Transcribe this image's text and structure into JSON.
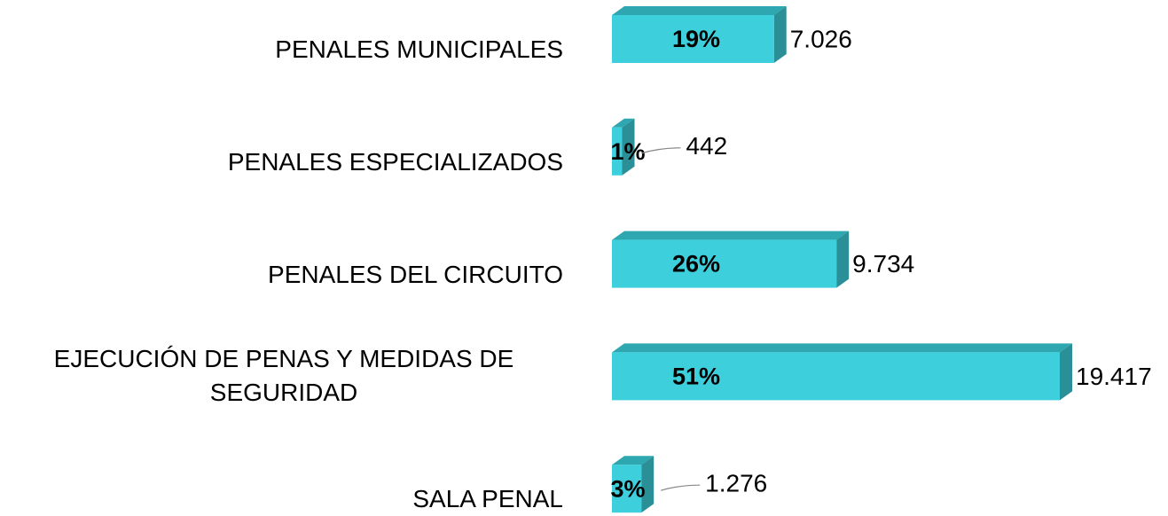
{
  "chart_data": {
    "type": "bar3d_horizontal",
    "categories": [
      "PENALES MUNICIPALES",
      "PENALES ESPECIALIZADOS",
      "PENALES DEL CIRCUITO",
      "EJECUCIÓN DE PENAS Y MEDIDAS DE SEGURIDAD",
      "SALA PENAL"
    ],
    "values": [
      7026,
      442,
      9734,
      19417,
      1276
    ],
    "value_labels": [
      "7.026",
      "442",
      "9.734",
      "19.417",
      "1.276"
    ],
    "percentages": [
      19,
      1,
      26,
      51,
      3
    ],
    "percentage_labels": [
      "19%",
      "1%",
      "26%",
      "51%",
      "3%"
    ],
    "color": "#3ecfdc"
  }
}
